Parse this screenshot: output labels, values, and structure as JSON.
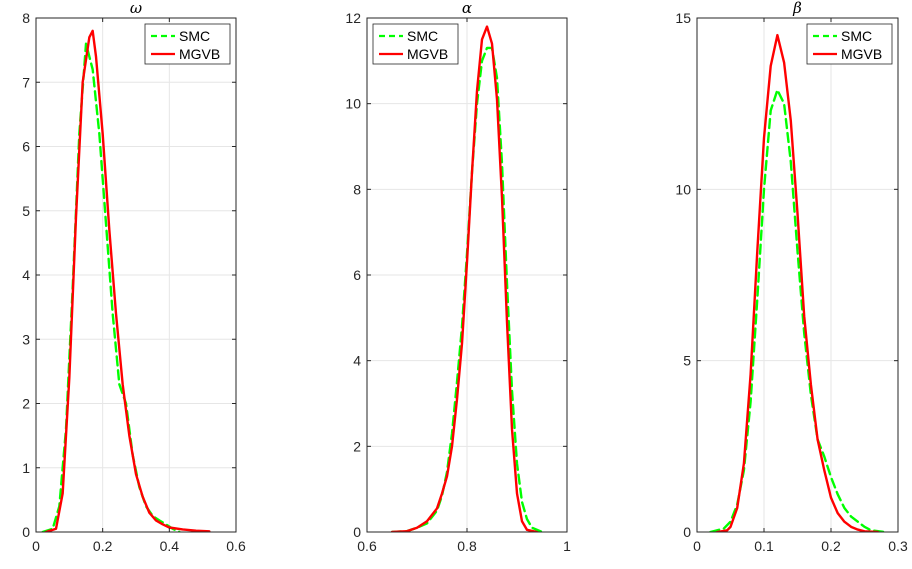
{
  "chart_data": [
    {
      "type": "line",
      "title": "ω",
      "xlabel": "",
      "ylabel": "",
      "xlim": [
        0,
        0.6
      ],
      "ylim": [
        0,
        8
      ],
      "xticks": [
        "0",
        "0.2",
        "0.4",
        "0.6"
      ],
      "yticks": [
        "0",
        "1",
        "2",
        "3",
        "4",
        "5",
        "6",
        "7",
        "8"
      ],
      "grid": true,
      "legend": "top-right",
      "series": [
        {
          "name": "SMC",
          "color": "#00ff00",
          "dash": "dashed",
          "x": [
            0.02,
            0.05,
            0.07,
            0.09,
            0.11,
            0.13,
            0.15,
            0.17,
            0.19,
            0.21,
            0.23,
            0.25,
            0.27,
            0.29,
            0.31,
            0.33,
            0.35,
            0.37,
            0.39,
            0.41,
            0.43
          ],
          "y": [
            0.0,
            0.05,
            0.4,
            1.6,
            3.8,
            6.2,
            7.6,
            7.2,
            6.2,
            4.8,
            3.4,
            2.3,
            2.0,
            1.2,
            0.7,
            0.4,
            0.25,
            0.18,
            0.12,
            0.05,
            0.0
          ]
        },
        {
          "name": "MGVB",
          "color": "#ff0000",
          "dash": "solid",
          "x": [
            0.03,
            0.06,
            0.08,
            0.1,
            0.12,
            0.14,
            0.16,
            0.17,
            0.18,
            0.2,
            0.22,
            0.24,
            0.26,
            0.28,
            0.3,
            0.32,
            0.34,
            0.36,
            0.38,
            0.4,
            0.44,
            0.48,
            0.52
          ],
          "y": [
            0.0,
            0.05,
            0.6,
            2.4,
            4.9,
            7.0,
            7.7,
            7.8,
            7.4,
            6.2,
            4.7,
            3.4,
            2.3,
            1.5,
            0.9,
            0.55,
            0.3,
            0.18,
            0.12,
            0.07,
            0.04,
            0.02,
            0.01
          ]
        }
      ]
    },
    {
      "type": "line",
      "title": "α",
      "xlabel": "",
      "ylabel": "",
      "xlim": [
        0.6,
        1.0
      ],
      "ylim": [
        0,
        12
      ],
      "xticks": [
        "0.6",
        "0.8",
        "1"
      ],
      "yticks": [
        "0",
        "2",
        "4",
        "6",
        "8",
        "10",
        "12"
      ],
      "grid": true,
      "legend": "top-left",
      "series": [
        {
          "name": "SMC",
          "color": "#00ff00",
          "dash": "dashed",
          "x": [
            0.65,
            0.68,
            0.7,
            0.72,
            0.74,
            0.75,
            0.76,
            0.77,
            0.78,
            0.79,
            0.8,
            0.81,
            0.82,
            0.83,
            0.84,
            0.85,
            0.86,
            0.87,
            0.88,
            0.89,
            0.9,
            0.91,
            0.92,
            0.93,
            0.95
          ],
          "y": [
            0.0,
            0.02,
            0.1,
            0.2,
            0.5,
            0.85,
            1.4,
            2.3,
            3.5,
            4.8,
            6.5,
            8.4,
            10.0,
            11.0,
            11.3,
            11.3,
            10.6,
            8.6,
            5.8,
            3.3,
            1.6,
            0.7,
            0.3,
            0.1,
            0.0
          ]
        },
        {
          "name": "MGVB",
          "color": "#ff0000",
          "dash": "solid",
          "x": [
            0.65,
            0.68,
            0.7,
            0.72,
            0.74,
            0.75,
            0.76,
            0.77,
            0.78,
            0.79,
            0.8,
            0.81,
            0.82,
            0.83,
            0.84,
            0.85,
            0.86,
            0.87,
            0.88,
            0.89,
            0.9,
            0.91,
            0.92,
            0.94
          ],
          "y": [
            0.0,
            0.02,
            0.1,
            0.25,
            0.55,
            0.9,
            1.3,
            2.0,
            3.1,
            4.4,
            6.3,
            8.4,
            10.3,
            11.5,
            11.8,
            11.4,
            10.1,
            7.8,
            4.9,
            2.4,
            0.9,
            0.25,
            0.05,
            0.0
          ]
        }
      ]
    },
    {
      "type": "line",
      "title": "β",
      "xlabel": "",
      "ylabel": "",
      "xlim": [
        0,
        0.3
      ],
      "ylim": [
        0,
        15
      ],
      "xticks": [
        "0",
        "0.1",
        "0.2",
        "0.3"
      ],
      "yticks": [
        "0",
        "5",
        "10",
        "15"
      ],
      "grid": true,
      "legend": "top-right",
      "series": [
        {
          "name": "SMC",
          "color": "#00ff00",
          "dash": "dashed",
          "x": [
            0.02,
            0.04,
            0.05,
            0.06,
            0.07,
            0.08,
            0.09,
            0.1,
            0.11,
            0.12,
            0.13,
            0.14,
            0.15,
            0.16,
            0.17,
            0.18,
            0.19,
            0.2,
            0.21,
            0.22,
            0.23,
            0.24,
            0.25,
            0.26,
            0.28
          ],
          "y": [
            0.0,
            0.1,
            0.3,
            0.8,
            1.8,
            3.8,
            6.8,
            10.0,
            12.3,
            12.9,
            12.5,
            10.8,
            8.2,
            5.8,
            4.0,
            2.7,
            2.2,
            1.6,
            1.1,
            0.7,
            0.45,
            0.3,
            0.15,
            0.05,
            0.0
          ]
        },
        {
          "name": "MGVB",
          "color": "#ff0000",
          "dash": "solid",
          "x": [
            0.03,
            0.045,
            0.05,
            0.06,
            0.07,
            0.08,
            0.09,
            0.1,
            0.11,
            0.12,
            0.13,
            0.14,
            0.15,
            0.16,
            0.17,
            0.18,
            0.19,
            0.2,
            0.21,
            0.22,
            0.23,
            0.24,
            0.25,
            0.27
          ],
          "y": [
            0.0,
            0.05,
            0.15,
            0.7,
            2.0,
            4.6,
            8.2,
            11.5,
            13.6,
            14.5,
            13.7,
            12.0,
            9.3,
            6.3,
            4.3,
            2.7,
            1.8,
            1.0,
            0.55,
            0.3,
            0.15,
            0.07,
            0.02,
            0.0
          ]
        }
      ]
    }
  ]
}
